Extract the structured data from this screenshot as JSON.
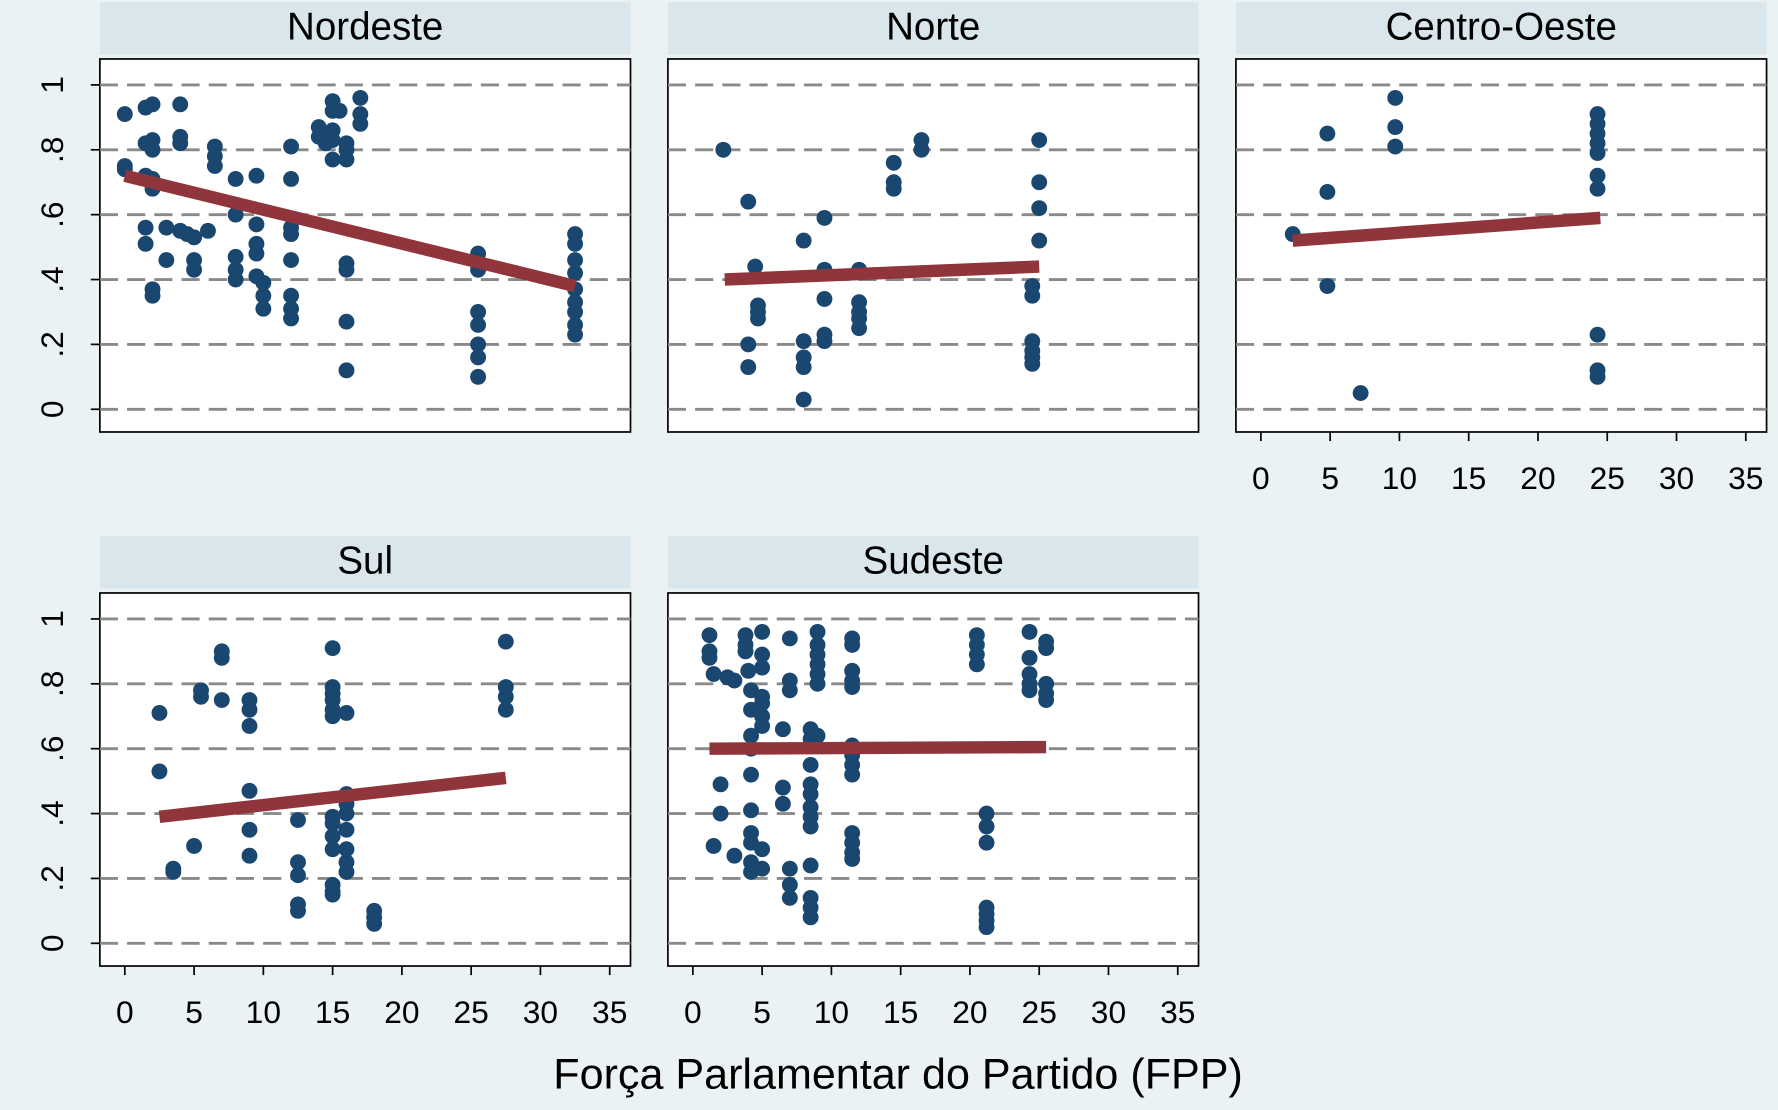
{
  "chart_data": {
    "type": "scatter",
    "xlabel": "Força Parlamentar do Partido (FPP)",
    "xlim": [
      -1.8,
      36.5
    ],
    "ylim": [
      -0.07,
      1.08
    ],
    "xticks": [
      0,
      5,
      10,
      15,
      20,
      25,
      30,
      35
    ],
    "yticks": [
      0,
      {
        "value": 0.2,
        "label": ".2"
      },
      {
        "value": 0.4,
        "label": ".4"
      },
      {
        "value": 0.6,
        "label": ".6"
      },
      {
        "value": 0.8,
        "label": ".8"
      },
      1
    ],
    "grid": true,
    "color": "#1a476f",
    "fit_color": "#90353b",
    "panels": [
      {
        "title": "Nordeste",
        "x": [
          0,
          0,
          0,
          1.5,
          2,
          1.5,
          2,
          2,
          1.5,
          2,
          2,
          1.5,
          1.5,
          2,
          2,
          3,
          3,
          4,
          4,
          4,
          4,
          4.5,
          5,
          5,
          5,
          6,
          6.5,
          6.5,
          6.5,
          8,
          8,
          8,
          8,
          8,
          9.5,
          9.5,
          9.5,
          9.5,
          9.5,
          10,
          10,
          10,
          12,
          12,
          12,
          12,
          12,
          12,
          12,
          12,
          14,
          14,
          14.5,
          15,
          15,
          15,
          15,
          15,
          15.5,
          16,
          16,
          16,
          16,
          16,
          16,
          16,
          17,
          17,
          17,
          25.5,
          25.5,
          25.5,
          25.5,
          25.5,
          25.5,
          25.5,
          32.5,
          32.5,
          32.5,
          32.5,
          32.5,
          32.5,
          32.5,
          32.5,
          32.5
        ],
        "values": [
          0.91,
          0.75,
          0.74,
          0.93,
          0.94,
          0.82,
          0.83,
          0.8,
          0.72,
          0.71,
          0.68,
          0.56,
          0.51,
          0.37,
          0.35,
          0.56,
          0.46,
          0.94,
          0.84,
          0.82,
          0.55,
          0.54,
          0.53,
          0.46,
          0.43,
          0.55,
          0.81,
          0.78,
          0.75,
          0.71,
          0.6,
          0.47,
          0.43,
          0.4,
          0.72,
          0.57,
          0.51,
          0.48,
          0.41,
          0.39,
          0.35,
          0.31,
          0.81,
          0.71,
          0.56,
          0.54,
          0.46,
          0.35,
          0.31,
          0.28,
          0.87,
          0.84,
          0.82,
          0.95,
          0.92,
          0.86,
          0.83,
          0.77,
          0.92,
          0.82,
          0.8,
          0.77,
          0.45,
          0.43,
          0.27,
          0.12,
          0.96,
          0.91,
          0.88,
          0.48,
          0.43,
          0.3,
          0.26,
          0.2,
          0.16,
          0.1,
          0.54,
          0.51,
          0.46,
          0.42,
          0.37,
          0.33,
          0.3,
          0.26,
          0.23
        ],
        "fit_x": [
          0,
          32.5
        ],
        "fit_y": [
          0.72,
          0.38
        ]
      },
      {
        "title": "Norte",
        "x": [
          2.2,
          4,
          4,
          4,
          4.5,
          4.7,
          4.7,
          4.7,
          8,
          8,
          8,
          8,
          8,
          9.5,
          9.5,
          9.5,
          9.5,
          9.5,
          12,
          12,
          12,
          12,
          12,
          14.5,
          14.5,
          14.5,
          16.5,
          16.5,
          24.5,
          24.5,
          24.5,
          24.5,
          24.5,
          24.5,
          25,
          25,
          25,
          25
        ],
        "values": [
          0.8,
          0.64,
          0.2,
          0.13,
          0.44,
          0.32,
          0.3,
          0.28,
          0.52,
          0.21,
          0.16,
          0.13,
          0.03,
          0.59,
          0.43,
          0.34,
          0.23,
          0.21,
          0.43,
          0.33,
          0.3,
          0.28,
          0.25,
          0.76,
          0.7,
          0.68,
          0.83,
          0.8,
          0.38,
          0.35,
          0.21,
          0.18,
          0.16,
          0.14,
          0.83,
          0.7,
          0.62,
          0.52
        ],
        "fit_x": [
          2.3,
          25
        ],
        "fit_y": [
          0.4,
          0.44
        ]
      },
      {
        "title": "Centro-Oeste",
        "x": [
          2.3,
          4.8,
          4.8,
          4.8,
          7.2,
          9.7,
          9.7,
          9.7,
          24.3,
          24.3,
          24.3,
          24.3,
          24.3,
          24.3,
          24.3,
          24.3,
          24.3,
          24.3
        ],
        "values": [
          0.54,
          0.85,
          0.67,
          0.38,
          0.05,
          0.96,
          0.87,
          0.81,
          0.91,
          0.88,
          0.85,
          0.82,
          0.79,
          0.72,
          0.68,
          0.23,
          0.12,
          0.1
        ],
        "fit_x": [
          2.3,
          24.5
        ],
        "fit_y": [
          0.52,
          0.59
        ]
      },
      {
        "title": "Sul",
        "x": [
          2.5,
          2.5,
          3.5,
          3.5,
          5,
          5.5,
          5.5,
          7,
          7,
          7,
          9,
          9,
          9,
          9,
          9,
          9,
          12.5,
          12.5,
          12.5,
          12.5,
          12.5,
          15,
          15,
          15,
          15,
          15,
          15,
          15,
          15,
          15,
          15,
          15,
          15,
          15,
          16,
          16,
          16,
          16,
          16,
          16,
          16,
          16,
          18,
          18,
          18,
          27.5,
          27.5,
          27.5,
          27.5
        ],
        "values": [
          0.71,
          0.53,
          0.23,
          0.22,
          0.3,
          0.78,
          0.76,
          0.9,
          0.88,
          0.75,
          0.75,
          0.72,
          0.67,
          0.47,
          0.35,
          0.27,
          0.38,
          0.25,
          0.21,
          0.12,
          0.1,
          0.91,
          0.79,
          0.77,
          0.75,
          0.72,
          0.7,
          0.39,
          0.37,
          0.33,
          0.29,
          0.18,
          0.16,
          0.15,
          0.71,
          0.46,
          0.43,
          0.4,
          0.35,
          0.29,
          0.25,
          0.22,
          0.1,
          0.08,
          0.06,
          0.93,
          0.79,
          0.76,
          0.72
        ],
        "fit_x": [
          2.5,
          27.5
        ],
        "fit_y": [
          0.39,
          0.51
        ]
      },
      {
        "title": "Sudeste",
        "x": [
          1.2,
          1.2,
          1.2,
          1.5,
          1.5,
          2,
          2,
          2.5,
          3,
          3,
          3.8,
          3.8,
          3.8,
          4,
          4.2,
          4.2,
          4.2,
          4.2,
          4.2,
          4.2,
          4.2,
          4.2,
          4.2,
          4.2,
          5,
          5,
          5,
          5,
          5,
          5,
          5,
          5,
          5,
          6.5,
          6.5,
          6.5,
          7,
          7,
          7,
          7,
          7,
          7,
          8.5,
          8.5,
          8.5,
          8.5,
          8.5,
          8.5,
          8.5,
          8.5,
          8.5,
          8.5,
          8.5,
          8.5,
          9,
          9,
          9,
          9,
          9,
          9,
          9,
          11.5,
          11.5,
          11.5,
          11.5,
          11.5,
          11.5,
          11.5,
          11.5,
          11.5,
          11.5,
          11.5,
          11.5,
          11.5,
          20.5,
          20.5,
          20.5,
          20.5,
          21.2,
          21.2,
          21.2,
          21.2,
          21.2,
          21.2,
          21.2,
          24.3,
          24.3,
          24.3,
          24.3,
          24.3,
          25.5,
          25.5,
          25.5,
          25.5,
          25.5
        ],
        "values": [
          0.95,
          0.9,
          0.88,
          0.83,
          0.3,
          0.49,
          0.4,
          0.82,
          0.81,
          0.27,
          0.95,
          0.92,
          0.9,
          0.84,
          0.78,
          0.72,
          0.64,
          0.6,
          0.52,
          0.41,
          0.34,
          0.31,
          0.25,
          0.22,
          0.96,
          0.89,
          0.85,
          0.76,
          0.74,
          0.7,
          0.67,
          0.29,
          0.23,
          0.66,
          0.48,
          0.43,
          0.94,
          0.81,
          0.78,
          0.23,
          0.18,
          0.14,
          0.66,
          0.63,
          0.55,
          0.49,
          0.46,
          0.42,
          0.39,
          0.36,
          0.24,
          0.14,
          0.11,
          0.08,
          0.96,
          0.92,
          0.89,
          0.86,
          0.83,
          0.8,
          0.64,
          0.94,
          0.92,
          0.84,
          0.81,
          0.79,
          0.61,
          0.58,
          0.55,
          0.52,
          0.34,
          0.31,
          0.28,
          0.26,
          0.95,
          0.92,
          0.89,
          0.86,
          0.4,
          0.36,
          0.31,
          0.11,
          0.09,
          0.07,
          0.05,
          0.96,
          0.88,
          0.83,
          0.8,
          0.78,
          0.93,
          0.91,
          0.8,
          0.77,
          0.75
        ],
        "fit_x": [
          1.2,
          25.5
        ],
        "fit_y": [
          0.6,
          0.605
        ]
      }
    ]
  }
}
